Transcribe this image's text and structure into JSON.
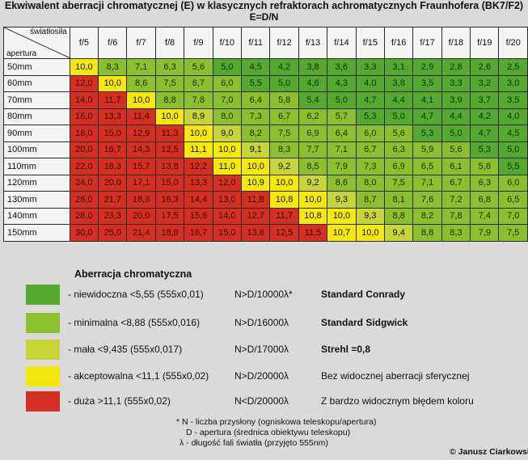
{
  "title": {
    "line1": "Ekwiwalent aberracji chromatycznej (E) w klasycznych refraktorach achromatycznych Fraunhofera (BK7/F2)",
    "line2": "E=D/N"
  },
  "table": {
    "corner_top": "światłosiła",
    "corner_bottom": "apertura",
    "columns": [
      "f/5",
      "f/6",
      "f/7",
      "f/8",
      "f/9",
      "f/10",
      "f/11",
      "f/12",
      "f/13",
      "f/14",
      "f/15",
      "f/16",
      "f/17",
      "f/18",
      "f/19",
      "f/20"
    ],
    "rows": [
      {
        "label": "50mm",
        "values": [
          "10,0",
          "8,3",
          "7,1",
          "6,3",
          "5,6",
          "5,0",
          "4,5",
          "4,2",
          "3,8",
          "3,6",
          "3,3",
          "3,1",
          "2,9",
          "2,8",
          "2,6",
          "2,5"
        ]
      },
      {
        "label": "60mm",
        "values": [
          "12,0",
          "10,0",
          "8,6",
          "7,5",
          "6,7",
          "6,0",
          "5,5",
          "5,0",
          "4,6",
          "4,3",
          "4,0",
          "3,8",
          "3,5",
          "3,3",
          "3,2",
          "3,0"
        ]
      },
      {
        "label": "70mm",
        "values": [
          "14,0",
          "11,7",
          "10,0",
          "8,8",
          "7,8",
          "7,0",
          "6,4",
          "5,8",
          "5,4",
          "5,0",
          "4,7",
          "4,4",
          "4,1",
          "3,9",
          "3,7",
          "3,5"
        ]
      },
      {
        "label": "80mm",
        "values": [
          "16,0",
          "13,3",
          "11,4",
          "10,0",
          "8,9",
          "8,0",
          "7,3",
          "6,7",
          "6,2",
          "5,7",
          "5,3",
          "5,0",
          "4,7",
          "4,4",
          "4,2",
          "4,0"
        ]
      },
      {
        "label": "90mm",
        "values": [
          "18,0",
          "15,0",
          "12,9",
          "11,3",
          "10,0",
          "9,0",
          "8,2",
          "7,5",
          "6,9",
          "6,4",
          "6,0",
          "5,6",
          "5,3",
          "5,0",
          "4,7",
          "4,5"
        ]
      },
      {
        "label": "100mm",
        "values": [
          "20,0",
          "16,7",
          "14,3",
          "12,5",
          "11,1",
          "10,0",
          "9,1",
          "8,3",
          "7,7",
          "7,1",
          "6,7",
          "6,3",
          "5,9",
          "5,6",
          "5,3",
          "5,0"
        ]
      },
      {
        "label": "110mm",
        "values": [
          "22,0",
          "18,3",
          "15,7",
          "13,8",
          "12,2",
          "11,0",
          "10,0",
          "9,2",
          "8,5",
          "7,9",
          "7,3",
          "6,9",
          "6,5",
          "6,1",
          "5,8",
          "5,5"
        ]
      },
      {
        "label": "120mm",
        "values": [
          "24,0",
          "20,0",
          "17,1",
          "15,0",
          "13,3",
          "12,0",
          "10,9",
          "10,0",
          "9,2",
          "8,6",
          "8,0",
          "7,5",
          "7,1",
          "6,7",
          "6,3",
          "6,0"
        ]
      },
      {
        "label": "130mm",
        "values": [
          "26,0",
          "21,7",
          "18,6",
          "16,3",
          "14,4",
          "13,0",
          "11,8",
          "10,8",
          "10,0",
          "9,3",
          "8,7",
          "8,1",
          "7,6",
          "7,2",
          "6,8",
          "6,5"
        ]
      },
      {
        "label": "140mm",
        "values": [
          "28,0",
          "23,3",
          "20,0",
          "17,5",
          "15,6",
          "14,0",
          "12,7",
          "11,7",
          "10,8",
          "10,0",
          "9,3",
          "8,8",
          "8,2",
          "7,8",
          "7,4",
          "7,0"
        ]
      },
      {
        "label": "150mm",
        "values": [
          "30,0",
          "25,0",
          "21,4",
          "18,8",
          "16,7",
          "15,0",
          "13,6",
          "12,5",
          "11,5",
          "10,7",
          "10,0",
          "9,4",
          "8,8",
          "8,3",
          "7,9",
          "7,5"
        ]
      }
    ]
  },
  "colors": {
    "red": "#d32f22",
    "yellow": "#f6e80e",
    "lime": "#c7d43a",
    "light_green": "#8cbf2d",
    "green": "#55a830"
  },
  "legend": {
    "title": "Aberracja chromatyczna",
    "items": [
      {
        "color": "#55a830",
        "desc": "- niewidoczna <5,55  (555x0,01)",
        "ratio": "N>D/10000λ*",
        "standard": "Standard Conrady",
        "bold": true
      },
      {
        "color": "#8cbf2d",
        "desc": "- minimalna <8,88 (555x0,016)",
        "ratio": "N>D/16000λ",
        "standard": "Standard Sidgwick",
        "bold": true
      },
      {
        "color": "#c7d43a",
        "desc": "- mała <9,435 (555x0,017)",
        "ratio": "N>D/17000λ",
        "standard": "Strehl =0,8",
        "bold": true
      },
      {
        "color": "#f6e80e",
        "desc": "- akceptowalna <11,1 (555x0,02)",
        "ratio": "N>D/20000λ",
        "standard": "Bez widocznej aberracji sferycznej",
        "bold": false
      },
      {
        "color": "#d32f22",
        "desc": "- duża >11,1 (555x0,02)",
        "ratio": "N<D/20000λ",
        "standard": "Z bardzo widocznym błędem koloru",
        "bold": false
      }
    ]
  },
  "notes": [
    "* N - liczba przysłony (ogniskowa teleskopu/apertura)",
    "D - apertura (średnica obiektywu teleskopu)",
    "λ - długość fali światła (przyjęto 555nm)"
  ],
  "credit": "© Janusz Ciarkowski"
}
